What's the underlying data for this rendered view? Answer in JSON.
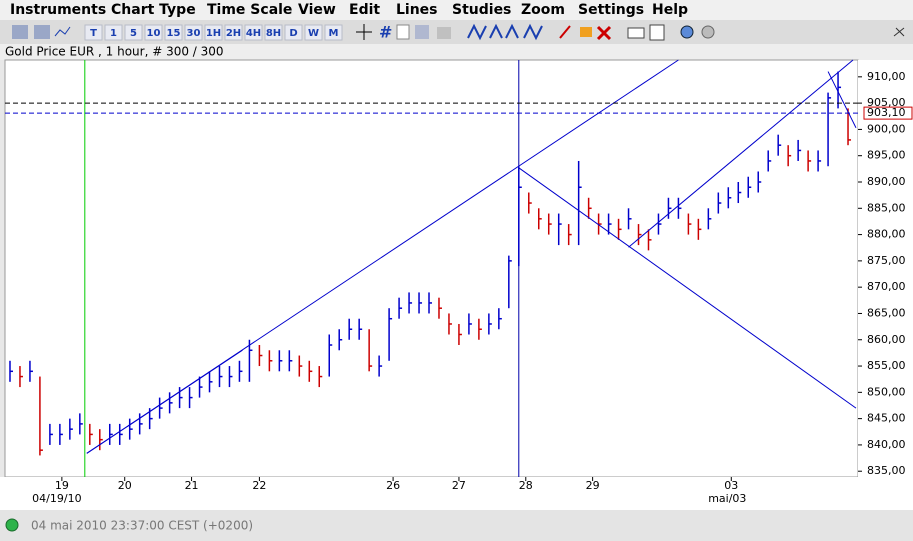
{
  "menu": [
    "Instruments",
    "Chart Type",
    "Time Scale",
    "View",
    "Edit",
    "Lines",
    "Studies",
    "Zoom",
    "Settings",
    "Help"
  ],
  "toolbar": {
    "periods": [
      "T",
      "1",
      "5",
      "10",
      "15",
      "30",
      "1H",
      "2H",
      "4H",
      "8H",
      "D",
      "W",
      "M"
    ]
  },
  "chart_data": {
    "type": "ohlc",
    "title": "Gold Price EUR , 1 hour, # 300 / 300",
    "xlim": [
      -0.5,
      85
    ],
    "ylim": [
      833.9,
      913.2
    ],
    "xticks": [
      {
        "value": 5.2,
        "label": "19"
      },
      {
        "value": 11.5,
        "label": "20"
      },
      {
        "value": 18.2,
        "label": "21"
      },
      {
        "value": 25,
        "label": "22"
      },
      {
        "value": 38.4,
        "label": "26"
      },
      {
        "value": 45,
        "label": "27"
      },
      {
        "value": 51.7,
        "label": "28"
      },
      {
        "value": 58.4,
        "label": "29"
      },
      {
        "value": 72.3,
        "label": "03"
      }
    ],
    "xsublabels": [
      {
        "value": 4.7,
        "label": "04/19/10"
      },
      {
        "value": 71.9,
        "label": "mai/03"
      }
    ],
    "yticks": [
      {
        "value": 835,
        "label": "835,00"
      },
      {
        "value": 840,
        "label": "840,00"
      },
      {
        "value": 845,
        "label": "845,00"
      },
      {
        "value": 850,
        "label": "850,00"
      },
      {
        "value": 855,
        "label": "855,00"
      },
      {
        "value": 860,
        "label": "860,00"
      },
      {
        "value": 865,
        "label": "865,00"
      },
      {
        "value": 870,
        "label": "870,00"
      },
      {
        "value": 875,
        "label": "875,00"
      },
      {
        "value": 880,
        "label": "880,00"
      },
      {
        "value": 885,
        "label": "885,00"
      },
      {
        "value": 890,
        "label": "890,00"
      },
      {
        "value": 895,
        "label": "895,00"
      },
      {
        "value": 900,
        "label": "900,00"
      },
      {
        "value": 905,
        "label": "905,00"
      },
      {
        "value": 910,
        "label": "910,00"
      }
    ],
    "up_color": "#0000cc",
    "down_color": "#cc0000",
    "high": [
      856,
      855,
      856,
      853,
      844,
      844,
      845,
      846,
      844,
      843,
      844,
      844,
      845,
      846,
      847,
      849,
      850,
      851,
      851,
      853,
      854,
      855,
      855,
      856,
      860,
      859,
      858,
      858,
      858,
      857,
      856,
      855,
      861,
      862,
      864,
      864,
      862,
      857,
      866,
      868,
      869,
      869,
      869,
      868,
      865,
      863,
      865,
      864,
      865,
      866,
      876,
      893,
      888,
      885,
      884,
      884,
      882,
      894,
      887,
      884,
      884,
      883,
      885,
      882,
      881,
      884,
      887,
      887,
      884,
      883,
      885,
      888,
      889,
      890,
      891,
      892,
      896,
      899,
      897,
      898,
      896,
      896,
      907,
      911,
      904
    ],
    "low": [
      852,
      851,
      852,
      838,
      840,
      840,
      841,
      842,
      840,
      839,
      840,
      840,
      841,
      842,
      843,
      845,
      846,
      847,
      847,
      849,
      850,
      851,
      851,
      852,
      852,
      855,
      854,
      854,
      854,
      853,
      852,
      851,
      853,
      858,
      860,
      860,
      854,
      853,
      856,
      864,
      865,
      865,
      865,
      864,
      861,
      859,
      861,
      860,
      861,
      862,
      866,
      874,
      884,
      881,
      880,
      878,
      878,
      878,
      883,
      880,
      880,
      879,
      881,
      878,
      877,
      880,
      883,
      883,
      880,
      879,
      881,
      884,
      885,
      886,
      887,
      888,
      892,
      895,
      893,
      894,
      892,
      892,
      893,
      904,
      897
    ],
    "close": [
      854,
      853,
      854,
      839,
      842,
      842,
      843,
      844,
      842,
      841,
      842,
      842,
      843,
      844,
      845,
      847,
      848,
      849,
      849,
      851,
      852,
      853,
      853,
      854,
      858,
      857,
      856,
      856,
      856,
      855,
      854,
      853,
      859,
      860,
      862,
      862,
      855,
      855,
      864,
      866,
      867,
      867,
      867,
      866,
      863,
      861,
      863,
      862,
      863,
      864,
      875,
      889,
      886,
      883,
      882,
      882,
      880,
      889,
      885,
      882,
      882,
      881,
      883,
      880,
      879,
      882,
      885,
      885,
      882,
      881,
      883,
      886,
      887,
      888,
      889,
      890,
      894,
      897,
      895,
      896,
      894,
      894,
      906,
      908,
      898
    ],
    "hlines": [
      {
        "value": 905,
        "label": "905,00",
        "color": "#000000"
      },
      {
        "value": 903.1,
        "label": "903,10",
        "color": "#0000cc"
      }
    ],
    "vlines": [
      {
        "value": 7.5,
        "color": "#00cc00"
      },
      {
        "value": 51,
        "color": "#0000aa"
      }
    ],
    "trendlines": [
      {
        "x1": 7.7,
        "y1": 838.4,
        "x2": 67,
        "y2": 913.2
      },
      {
        "x1": 7.7,
        "y1": 838.4,
        "x2": 23.3,
        "y2": 858
      },
      {
        "x1": 62,
        "y1": 877.6,
        "x2": 84.5,
        "y2": 913.2
      },
      {
        "x1": 51,
        "y1": 892.7,
        "x2": 84.8,
        "y2": 847
      },
      {
        "x1": 82,
        "y1": 911,
        "x2": 84.8,
        "y2": 900.3
      }
    ],
    "trend_color": "#0000cc"
  },
  "status": "04 mai 2010 23:37:00  CEST (+0200)"
}
